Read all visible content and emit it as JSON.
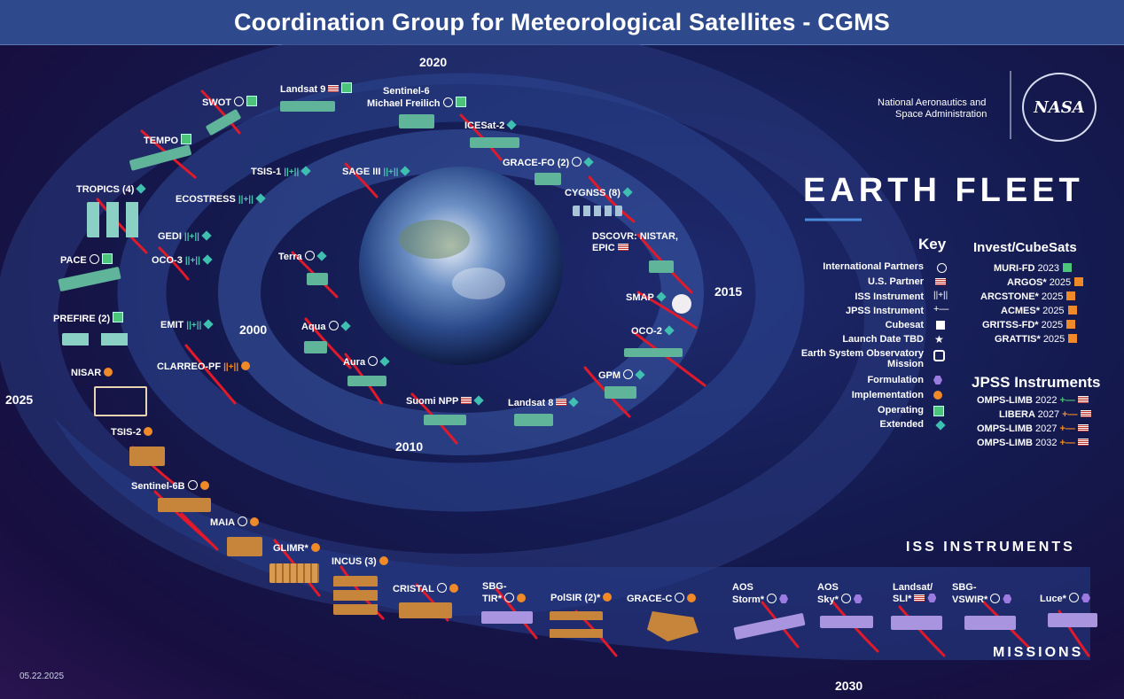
{
  "title": "Coordination Group for Meteorological Satellites - CGMS",
  "agency": {
    "line1": "National Aeronautics and",
    "line2": "Space Administration",
    "logo_text": "NASA"
  },
  "fleet_title": "EARTH FLEET",
  "years": {
    "y2000": "2000",
    "y2010": "2010",
    "y2015": "2015",
    "y2020": "2020",
    "y2025": "2025",
    "y2030": "2030"
  },
  "date_stamp": "05.22.2025",
  "sections": {
    "iss": "ISS INSTRUMENTS",
    "missions": "MISSIONS"
  },
  "key": {
    "title": "Key",
    "items": [
      {
        "label": "International Partners",
        "icon": "globe-icon"
      },
      {
        "label": "U.S. Partner",
        "icon": "flag-icon"
      },
      {
        "label": "ISS Instrument",
        "icon": "iss-icon"
      },
      {
        "label": "JPSS Instrument",
        "icon": "jpss-icon"
      },
      {
        "label": "Cubesat",
        "icon": "cube-icon"
      },
      {
        "label": "Launch Date TBD",
        "icon": "star-icon"
      },
      {
        "label": "Earth System Observatory Mission",
        "icon": "eso-icon"
      },
      {
        "label": "Formulation",
        "icon": "hexagon-icon"
      },
      {
        "label": "Implementation",
        "icon": "circle-icon"
      },
      {
        "label": "Operating",
        "icon": "square-icon"
      },
      {
        "label": "Extended",
        "icon": "diamond-icon"
      }
    ]
  },
  "cubesats": {
    "title": "Invest/CubeSats",
    "items": [
      {
        "name": "MURI-FD",
        "year": "2023"
      },
      {
        "name": "ARGOS*",
        "year": "2025"
      },
      {
        "name": "ARCSTONE*",
        "year": "2025"
      },
      {
        "name": "ACMES*",
        "year": "2025"
      },
      {
        "name": "GRITSS-FD*",
        "year": "2025"
      },
      {
        "name": "GRATTIS*",
        "year": "2025"
      }
    ]
  },
  "jpss": {
    "title": "JPSS Instruments",
    "items": [
      {
        "name": "OMPS-LIMB",
        "year": "2022"
      },
      {
        "name": "LIBERA",
        "year": "2027"
      },
      {
        "name": "OMPS-LIMB",
        "year": "2027"
      },
      {
        "name": "OMPS-LIMB",
        "year": "2032"
      }
    ]
  },
  "missions": {
    "inner": [
      "Terra",
      "Aqua",
      "Aura",
      "Suomi NPP",
      "Landsat 8",
      "GPM",
      "OCO-2",
      "SMAP",
      "DSCOVR: NISTAR, EPIC"
    ],
    "middle": [
      "TSIS-1",
      "SAGE III",
      "ECOSTRESS",
      "GEDI",
      "OCO-3",
      "EMIT",
      "CLARREO-PF",
      "CYGNSS (8)",
      "GRACE-FO (2)",
      "ICESat-2"
    ],
    "outer": [
      "SWOT",
      "Landsat 9",
      "Sentinel-6",
      "Michael Freilich",
      "TEMPO",
      "TROPICS (4)",
      "PACE",
      "PREFIRE (2)",
      "NISAR",
      "TSIS-2",
      "Sentinel-6B",
      "MAIA",
      "GLIMR*",
      "INCUS (3)",
      "CRISTAL"
    ],
    "future": [
      "SBG-",
      "TIR*",
      "PolSIR (2)*",
      "GRACE-C",
      "AOS",
      "Storm*",
      "AOS",
      "Sky*",
      "Landsat/",
      "SLI*",
      "SBG-",
      "VSWIR*",
      "Luce*"
    ]
  },
  "colors": {
    "title_bar": "#2f4a8c",
    "operating": "#4cc47a",
    "extended": "#3fbfb0",
    "implementation": "#f08a28",
    "formulation": "#9b7be0",
    "strike": "#e01a2a"
  }
}
